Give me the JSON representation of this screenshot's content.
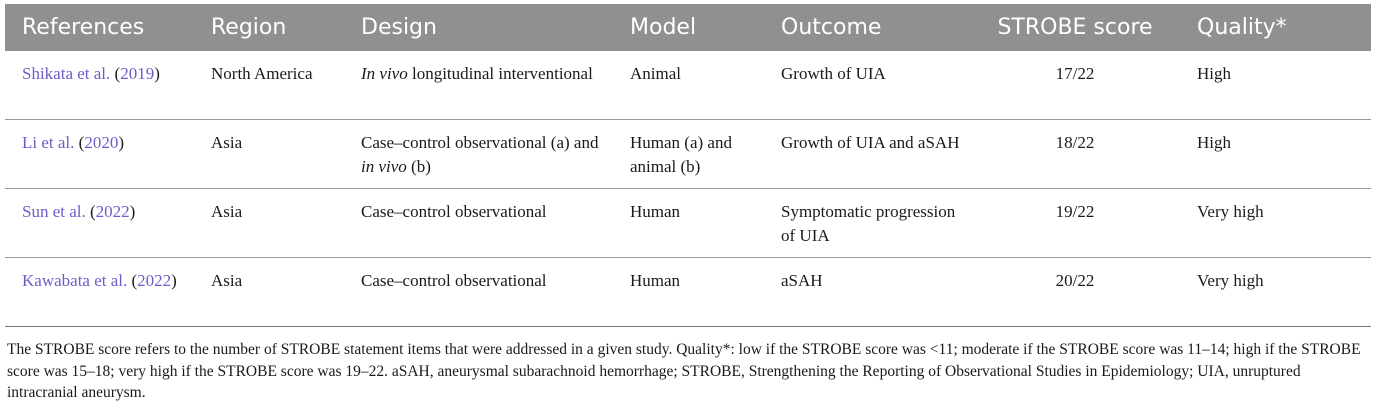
{
  "table": {
    "headers": [
      "References",
      "Region",
      "Design",
      "Model",
      "Outcome",
      "STROBE score",
      "Quality*"
    ],
    "rows": [
      {
        "ref_author": "Shikata et al.",
        "ref_open": " (",
        "ref_year": "2019",
        "ref_close": ")",
        "region": "North America",
        "design_italic_1": "In vivo",
        "design_text_1": " longitudinal interventional",
        "design_text_2": "",
        "design_italic_2": "",
        "design_text_3": "",
        "model": "Animal",
        "outcome": "Growth of UIA",
        "score": "17/22",
        "quality": "High"
      },
      {
        "ref_author": "Li et al.",
        "ref_open": " (",
        "ref_year": "2020",
        "ref_close": ")",
        "region": "Asia",
        "design_italic_1": "",
        "design_text_1": "Case–control observational (a) and ",
        "design_italic_2": "in vivo",
        "design_text_3": " (b)",
        "model": "Human (a) and animal (b)",
        "outcome": "Growth of UIA and aSAH",
        "score": "18/22",
        "quality": "High"
      },
      {
        "ref_author": "Sun et al.",
        "ref_open": " (",
        "ref_year": "2022",
        "ref_close": ")",
        "region": "Asia",
        "design_italic_1": "",
        "design_text_1": "Case–control observational",
        "design_italic_2": "",
        "design_text_3": "",
        "model": "Human",
        "outcome": "Symptomatic progression of UIA",
        "score": "19/22",
        "quality": "Very high"
      },
      {
        "ref_author": "Kawabata et al.",
        "ref_open": " (",
        "ref_year": "2022",
        "ref_close": ")",
        "region": "Asia",
        "design_italic_1": "",
        "design_text_1": "Case–control observational",
        "design_italic_2": "",
        "design_text_3": "",
        "model": "Human",
        "outcome": "aSAH",
        "score": "20/22",
        "quality": "Very high"
      }
    ]
  },
  "footnote": "The STROBE score refers to the number of STROBE statement items that were addressed in a given study. Quality*: low if the STROBE score was <11; moderate if the STROBE score was 11–14; high if the STROBE score was 15–18; very high if the STROBE score was 19–22. aSAH, aneurysmal subarachnoid hemorrhage; STROBE, Strengthening the Reporting of Observational Studies in Epidemiology; UIA, unruptured intracranial aneurysm.",
  "colors": {
    "header_bg": "#909090",
    "header_text": "#ffffff",
    "link": "#6a5ec9"
  }
}
